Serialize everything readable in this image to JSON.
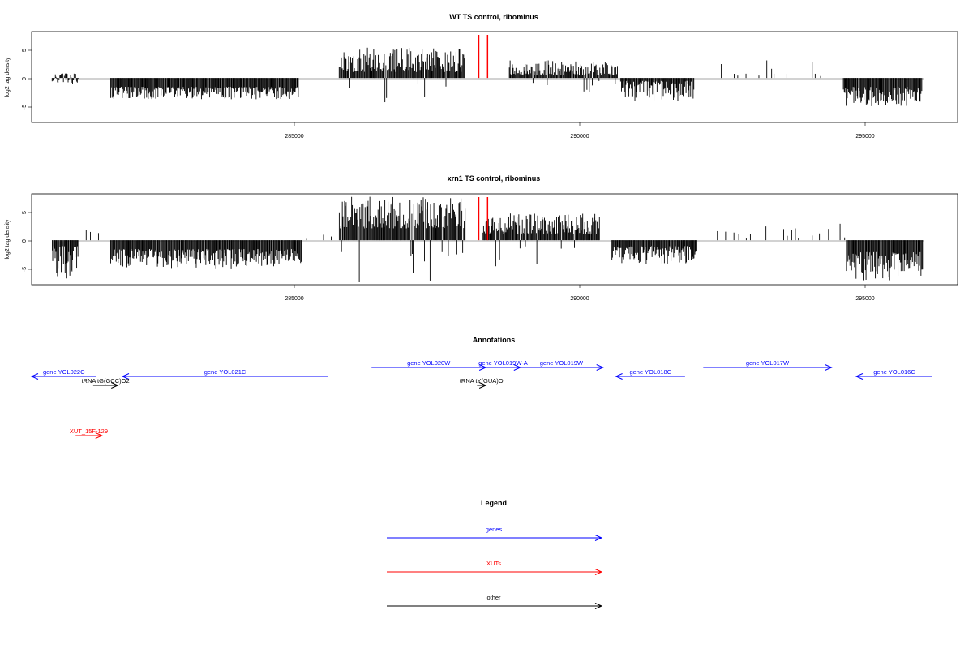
{
  "colors": {
    "gene": "#0000ff",
    "xut": "#ff0000",
    "other": "#000000",
    "bar": "#000000",
    "marker": "#ff0000",
    "frame": "#000000",
    "baseline": "#888888"
  },
  "chart_data": [
    {
      "type": "bar",
      "title": "WT TS control, ribominus",
      "ylabel": "log2 tag density",
      "xlim": [
        280800,
        296600
      ],
      "ylim": [
        -7.5,
        7.8
      ],
      "xticks": [
        285000,
        290000,
        295000
      ],
      "yticks": [
        -5,
        0,
        5
      ],
      "markers_x": [
        288430,
        288580
      ],
      "regions": [
        {
          "from": 281150,
          "to": 281600,
          "min": -0.8,
          "max": 1.5,
          "mode": "mix"
        },
        {
          "from": 282150,
          "to": 285350,
          "min": 1.5,
          "max": 3.6,
          "mode": "neg"
        },
        {
          "from": 286050,
          "to": 288200,
          "min": 1.0,
          "max": 5.3,
          "mode": "pos"
        },
        {
          "from": 288950,
          "to": 290800,
          "min": 0.5,
          "max": 3.0,
          "mode": "pos"
        },
        {
          "from": 290850,
          "to": 292100,
          "min": 0.5,
          "max": 3.9,
          "mode": "neg"
        },
        {
          "from": 292500,
          "to": 294600,
          "min": 0.2,
          "max": 3.0,
          "mode": "sparse"
        },
        {
          "from": 294650,
          "to": 296000,
          "min": 1.5,
          "max": 4.8,
          "mode": "neg"
        }
      ]
    },
    {
      "type": "bar",
      "title": "xrn1 TS control, ribominus",
      "ylabel": "log2 tag density",
      "xlim": [
        280800,
        296600
      ],
      "ylim": [
        -7.5,
        7.8
      ],
      "xticks": [
        285000,
        290000,
        295000
      ],
      "yticks": [
        -5,
        0,
        5
      ],
      "markers_x": [
        288430,
        288580
      ],
      "regions": [
        {
          "from": 281150,
          "to": 281600,
          "min": 1.0,
          "max": 6.5,
          "mode": "neg"
        },
        {
          "from": 281650,
          "to": 281950,
          "min": 0.5,
          "max": 2.0,
          "mode": "sparse"
        },
        {
          "from": 282150,
          "to": 285400,
          "min": 1.5,
          "max": 4.8,
          "mode": "neg"
        },
        {
          "from": 285500,
          "to": 286000,
          "min": 0.3,
          "max": 1.5,
          "mode": "sparse"
        },
        {
          "from": 286050,
          "to": 288200,
          "min": 2.0,
          "max": 7.5,
          "mode": "pos"
        },
        {
          "from": 288500,
          "to": 290500,
          "min": 1.0,
          "max": 4.5,
          "mode": "pos"
        },
        {
          "from": 290700,
          "to": 292150,
          "min": 1.0,
          "max": 4.0,
          "mode": "neg"
        },
        {
          "from": 292500,
          "to": 294700,
          "min": 0.3,
          "max": 3.7,
          "mode": "sparse"
        },
        {
          "from": 294700,
          "to": 296000,
          "min": 2.0,
          "max": 6.8,
          "mode": "neg"
        }
      ]
    }
  ],
  "annotations": {
    "title": "Annotations",
    "items": [
      {
        "label": "gene YOL022C",
        "kind": "gene",
        "dir": "left",
        "from": 280800,
        "to": 281900,
        "row": 1
      },
      {
        "label": "gene YOL021C",
        "kind": "gene",
        "dir": "left",
        "from": 282350,
        "to": 285850,
        "row": 1
      },
      {
        "label": "tRNA tG(GCC)O2",
        "kind": "other",
        "dir": "right",
        "from": 281850,
        "to": 282270,
        "row": 2
      },
      {
        "label": "gene YOL020W",
        "kind": "gene",
        "dir": "right",
        "from": 286600,
        "to": 288550,
        "row": 0
      },
      {
        "label": "gene YOL019W-A",
        "kind": "gene",
        "dir": "right",
        "from": 288550,
        "to": 289140,
        "row": 0
      },
      {
        "label": "gene YOL019W",
        "kind": "gene",
        "dir": "right",
        "from": 289130,
        "to": 290550,
        "row": 0
      },
      {
        "label": "tRNA tY(GUA)O",
        "kind": "other",
        "dir": "right",
        "from": 288400,
        "to": 288550,
        "row": 2
      },
      {
        "label": "gene YOL018C",
        "kind": "gene",
        "dir": "left",
        "from": 290770,
        "to": 291950,
        "row": 1
      },
      {
        "label": "gene YOL017W",
        "kind": "gene",
        "dir": "right",
        "from": 292260,
        "to": 294450,
        "row": 0
      },
      {
        "label": "gene YOL016C",
        "kind": "gene",
        "dir": "left",
        "from": 294870,
        "to": 296500,
        "row": 1
      },
      {
        "label": "XUT_15F-129",
        "kind": "xut",
        "dir": "right",
        "from": 281550,
        "to": 282000,
        "row": 3
      }
    ]
  },
  "legend": {
    "title": "Legend",
    "items": [
      {
        "label": "genes",
        "kind": "gene"
      },
      {
        "label": "XUTs",
        "kind": "xut"
      },
      {
        "label": "other",
        "kind": "other"
      }
    ]
  }
}
